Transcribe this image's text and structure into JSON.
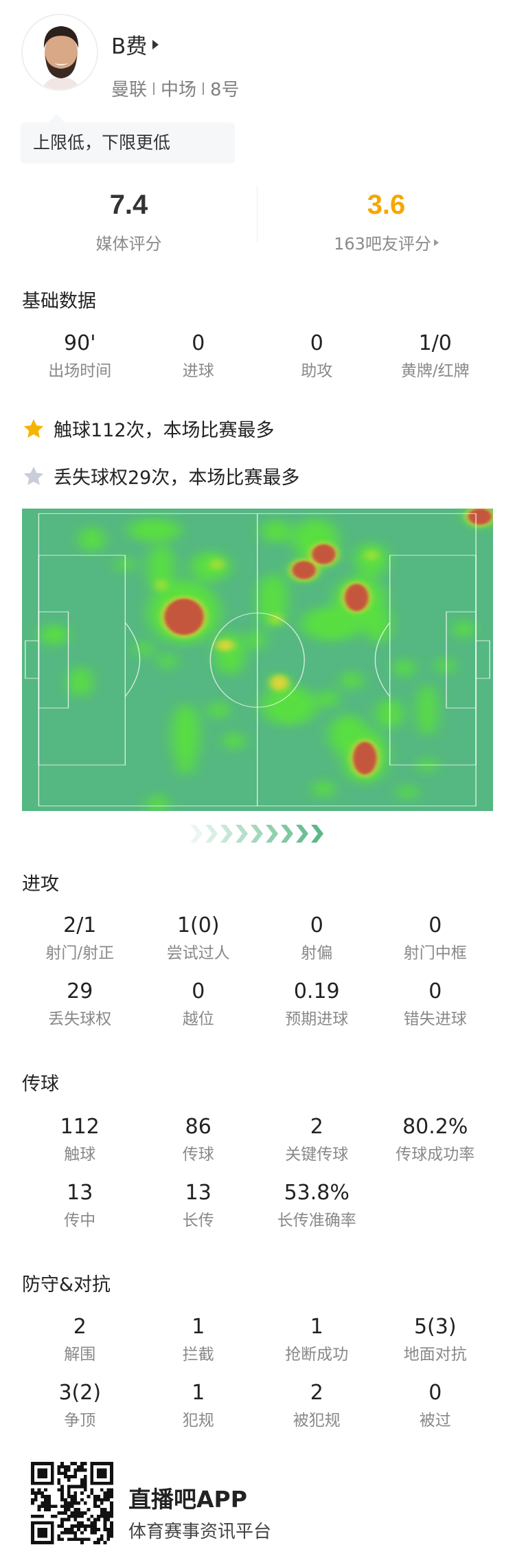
{
  "player": {
    "name": "B费",
    "team": "曼联",
    "position": "中场",
    "number": "8号",
    "tag": "上限低，下限更低"
  },
  "ratings": {
    "media": {
      "value": "7.4",
      "label": "媒体评分",
      "color": "#222222"
    },
    "fans": {
      "value": "3.6",
      "label": "163吧友评分",
      "color": "#f5a700"
    }
  },
  "basic": {
    "title": "基础数据",
    "stats": [
      {
        "value": "90'",
        "label": "出场时间"
      },
      {
        "value": "0",
        "label": "进球"
      },
      {
        "value": "0",
        "label": "助攻"
      },
      {
        "value": "1/0",
        "label": "黄牌/红牌"
      }
    ]
  },
  "highlights": [
    {
      "icon": "star-gold",
      "color": "#f5b400",
      "text": "触球112次，本场比赛最多"
    },
    {
      "icon": "star-gray",
      "color": "#c9cdd8",
      "text": "丢失球权29次，本场比赛最多"
    }
  ],
  "heatmap": {
    "pitch_color": "#55b781",
    "attack_direction": "right"
  },
  "attack": {
    "title": "进攻",
    "stats": [
      {
        "value": "2/1",
        "label": "射门/射正"
      },
      {
        "value": "1(0)",
        "label": "尝试过人"
      },
      {
        "value": "0",
        "label": "射偏"
      },
      {
        "value": "0",
        "label": "射门中框"
      },
      {
        "value": "29",
        "label": "丢失球权"
      },
      {
        "value": "0",
        "label": "越位"
      },
      {
        "value": "0.19",
        "label": "预期进球"
      },
      {
        "value": "0",
        "label": "错失进球"
      }
    ]
  },
  "passing": {
    "title": "传球",
    "stats": [
      {
        "value": "112",
        "label": "触球"
      },
      {
        "value": "86",
        "label": "传球"
      },
      {
        "value": "2",
        "label": "关键传球"
      },
      {
        "value": "80.2%",
        "label": "传球成功率"
      },
      {
        "value": "13",
        "label": "传中"
      },
      {
        "value": "13",
        "label": "长传"
      },
      {
        "value": "53.8%",
        "label": "长传准确率"
      }
    ]
  },
  "defense": {
    "title": "防守&对抗",
    "stats": [
      {
        "value": "2",
        "label": "解围"
      },
      {
        "value": "1",
        "label": "拦截"
      },
      {
        "value": "1",
        "label": "抢断成功"
      },
      {
        "value": "5(3)",
        "label": "地面对抗"
      },
      {
        "value": "3(2)",
        "label": "争顶"
      },
      {
        "value": "1",
        "label": "犯规"
      },
      {
        "value": "2",
        "label": "被犯规"
      },
      {
        "value": "0",
        "label": "被过"
      }
    ]
  },
  "footer": {
    "app_name": "直播吧APP",
    "slogan": "体育赛事资讯平台"
  }
}
